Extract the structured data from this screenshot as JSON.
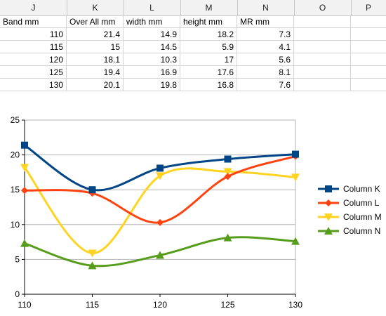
{
  "spreadsheet": {
    "columns": [
      "J",
      "K",
      "L",
      "M",
      "N",
      "O",
      "P"
    ],
    "headers": [
      "Band mm",
      "Over All mm",
      "width mm",
      "height mm",
      "MR mm"
    ],
    "rows": [
      [
        "110",
        "21.4",
        "14.9",
        "18.2",
        "7.3"
      ],
      [
        "115",
        "15",
        "14.5",
        "5.9",
        "4.1"
      ],
      [
        "120",
        "18.1",
        "10.3",
        "17",
        "5.6"
      ],
      [
        "125",
        "19.4",
        "16.9",
        "17.6",
        "8.1"
      ],
      [
        "130",
        "20.1",
        "19.8",
        "16.8",
        "7.6"
      ]
    ]
  },
  "chart_data": {
    "type": "line",
    "x": [
      110,
      115,
      120,
      125,
      130
    ],
    "xticks": [
      "110",
      "115",
      "120",
      "125",
      "130"
    ],
    "yticks": [
      "0",
      "5",
      "10",
      "15",
      "20",
      "25"
    ],
    "ylim": [
      0,
      25
    ],
    "grid": true,
    "smooth": true,
    "legend_position": "right",
    "series": [
      {
        "name": "Column K",
        "values": [
          21.4,
          15,
          18.1,
          19.4,
          20.1
        ],
        "color": "#004586",
        "marker": "square"
      },
      {
        "name": "Column L",
        "values": [
          14.9,
          14.5,
          10.3,
          16.9,
          19.8
        ],
        "color": "#ff420e",
        "marker": "diamond"
      },
      {
        "name": "Column M",
        "values": [
          18.2,
          5.9,
          17,
          17.6,
          16.8
        ],
        "color": "#ffd320",
        "marker": "triangle-down"
      },
      {
        "name": "Column N",
        "values": [
          7.3,
          4.1,
          5.6,
          8.1,
          7.6
        ],
        "color": "#579d1c",
        "marker": "triangle-up"
      }
    ]
  }
}
